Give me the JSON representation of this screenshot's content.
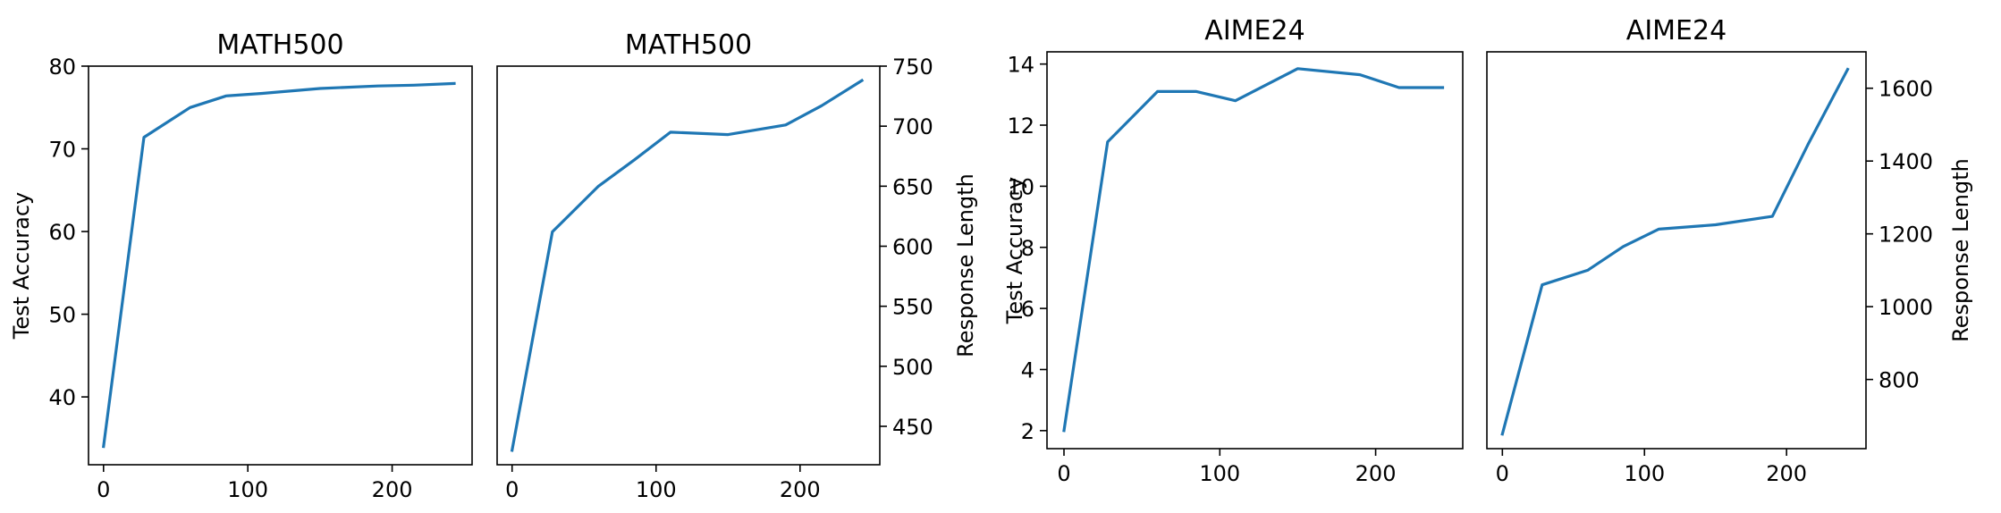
{
  "chart_data": [
    {
      "type": "line",
      "title": "MATH500",
      "xlabel": "",
      "ylabel": "Test Accuracy",
      "y_axis_side": "left",
      "xlim": [
        -10.4,
        255.4
      ],
      "ylim": [
        31.8,
        80.0
      ],
      "xticks": [
        0,
        100,
        200
      ],
      "yticks": [
        40,
        50,
        60,
        70,
        80
      ],
      "grid": false,
      "series": [
        {
          "color": "#1f77b4",
          "x": [
            0,
            28,
            60,
            85,
            110,
            150,
            190,
            215,
            243
          ],
          "y": [
            34.0,
            71.4,
            75.0,
            76.4,
            76.7,
            77.3,
            77.6,
            77.7,
            77.9
          ]
        }
      ]
    },
    {
      "type": "line",
      "title": "MATH500",
      "xlabel": "",
      "ylabel": "Response Length",
      "y_axis_side": "right",
      "xlim": [
        -10.4,
        255.4
      ],
      "ylim": [
        418.0,
        750.0
      ],
      "xticks": [
        0,
        100,
        200
      ],
      "yticks": [
        450,
        500,
        550,
        600,
        650,
        700,
        750
      ],
      "grid": false,
      "series": [
        {
          "color": "#1f77b4",
          "x": [
            0,
            28,
            60,
            85,
            110,
            150,
            190,
            215,
            243
          ],
          "y": [
            430,
            612,
            650,
            672,
            695,
            693,
            701,
            717,
            738
          ]
        }
      ]
    },
    {
      "type": "line",
      "title": "AIME24",
      "xlabel": "",
      "ylabel": "Test Accuracy",
      "y_axis_side": "left",
      "xlim": [
        -10.9,
        255.9
      ],
      "ylim": [
        1.41,
        14.4
      ],
      "xticks": [
        0,
        100,
        200
      ],
      "yticks": [
        2,
        4,
        6,
        8,
        10,
        12,
        14
      ],
      "grid": false,
      "series": [
        {
          "color": "#1f77b4",
          "x": [
            0,
            28,
            60,
            85,
            110,
            150,
            190,
            215,
            243
          ],
          "y": [
            2.0,
            11.45,
            13.1,
            13.1,
            12.8,
            13.85,
            13.65,
            13.23,
            13.23
          ]
        }
      ]
    },
    {
      "type": "line",
      "title": "AIME24",
      "xlabel": "",
      "ylabel": "Response Length",
      "y_axis_side": "right",
      "xlim": [
        -10.9,
        255.9
      ],
      "ylim": [
        610,
        1700
      ],
      "xticks": [
        0,
        100,
        200
      ],
      "yticks": [
        800,
        1000,
        1200,
        1400,
        1600
      ],
      "grid": false,
      "series": [
        {
          "color": "#1f77b4",
          "x": [
            0,
            28,
            60,
            85,
            110,
            150,
            190,
            215,
            243
          ],
          "y": [
            650,
            1060,
            1100,
            1165,
            1213,
            1225,
            1248,
            1445,
            1652
          ]
        }
      ]
    }
  ]
}
